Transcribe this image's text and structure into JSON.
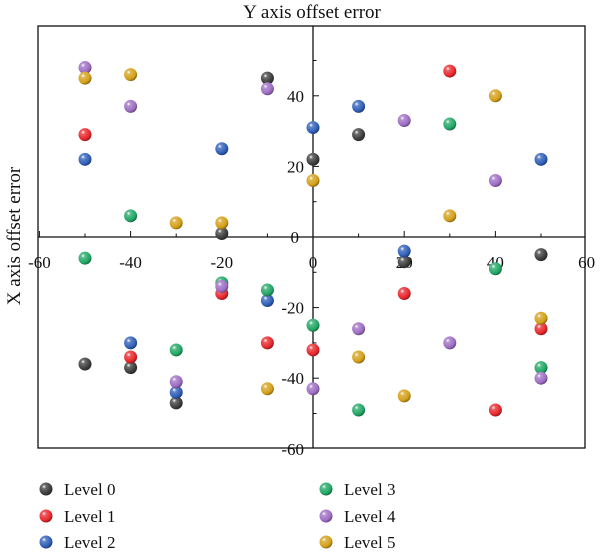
{
  "chart_data": {
    "type": "scatter",
    "title": "",
    "xlabel_top": "Y axis offset error",
    "ylabel": "X axis offset error",
    "xlim": [
      -60,
      60
    ],
    "ylim": [
      -60,
      60
    ],
    "x_ticks": [
      -60,
      -40,
      -20,
      0,
      20,
      40,
      60
    ],
    "y_ticks": [
      -60,
      -40,
      -20,
      0,
      20,
      40
    ],
    "x_tick_labels": [
      "-60",
      "-40",
      "-20",
      "0",
      "20",
      "40",
      "60"
    ],
    "y_tick_labels": [
      "-60",
      "-40",
      "-20",
      "0",
      "20",
      "40"
    ],
    "axes_at_origin": true,
    "grid": false,
    "legend_position": "bottom",
    "series": [
      {
        "name": "Level 0",
        "color": "#3d3d3d",
        "points": [
          [
            -10,
            45
          ],
          [
            -20,
            1
          ],
          [
            0,
            22
          ],
          [
            10,
            29
          ],
          [
            50,
            -5
          ],
          [
            -50,
            -36
          ],
          [
            -40,
            -37
          ],
          [
            -30,
            -47
          ],
          [
            20,
            -7
          ]
        ]
      },
      {
        "name": "Level 1",
        "color": "#e8272b",
        "points": [
          [
            -50,
            29
          ],
          [
            -20,
            -16
          ],
          [
            -10,
            -30
          ],
          [
            -40,
            -34
          ],
          [
            0,
            -32
          ],
          [
            20,
            -16
          ],
          [
            30,
            47
          ],
          [
            50,
            -26
          ],
          [
            40,
            -49
          ]
        ]
      },
      {
        "name": "Level 2",
        "color": "#2f5fb8",
        "points": [
          [
            -50,
            22
          ],
          [
            -20,
            25
          ],
          [
            0,
            31
          ],
          [
            10,
            37
          ],
          [
            20,
            -4
          ],
          [
            50,
            22
          ],
          [
            -40,
            -30
          ],
          [
            -30,
            -44
          ],
          [
            -10,
            -18
          ]
        ]
      },
      {
        "name": "Level 3",
        "color": "#22a765",
        "points": [
          [
            -50,
            -6
          ],
          [
            -40,
            6
          ],
          [
            -20,
            -13
          ],
          [
            -10,
            -15
          ],
          [
            -30,
            -32
          ],
          [
            0,
            -25
          ],
          [
            10,
            -49
          ],
          [
            30,
            32
          ],
          [
            40,
            -9
          ],
          [
            50,
            -37
          ]
        ]
      },
      {
        "name": "Level 4",
        "color": "#9e6dc4",
        "points": [
          [
            -50,
            48
          ],
          [
            -40,
            37
          ],
          [
            -10,
            42
          ],
          [
            -20,
            -14
          ],
          [
            -30,
            -41
          ],
          [
            0,
            -43
          ],
          [
            20,
            33
          ],
          [
            10,
            -26
          ],
          [
            30,
            -30
          ],
          [
            40,
            16
          ],
          [
            50,
            -40
          ]
        ]
      },
      {
        "name": "Level 5",
        "color": "#d4a019",
        "points": [
          [
            -50,
            45
          ],
          [
            -40,
            46
          ],
          [
            -30,
            4
          ],
          [
            -20,
            4
          ],
          [
            -10,
            -43
          ],
          [
            0,
            16
          ],
          [
            10,
            -34
          ],
          [
            20,
            -45
          ],
          [
            30,
            6
          ],
          [
            40,
            40
          ],
          [
            50,
            -23
          ]
        ]
      }
    ]
  }
}
